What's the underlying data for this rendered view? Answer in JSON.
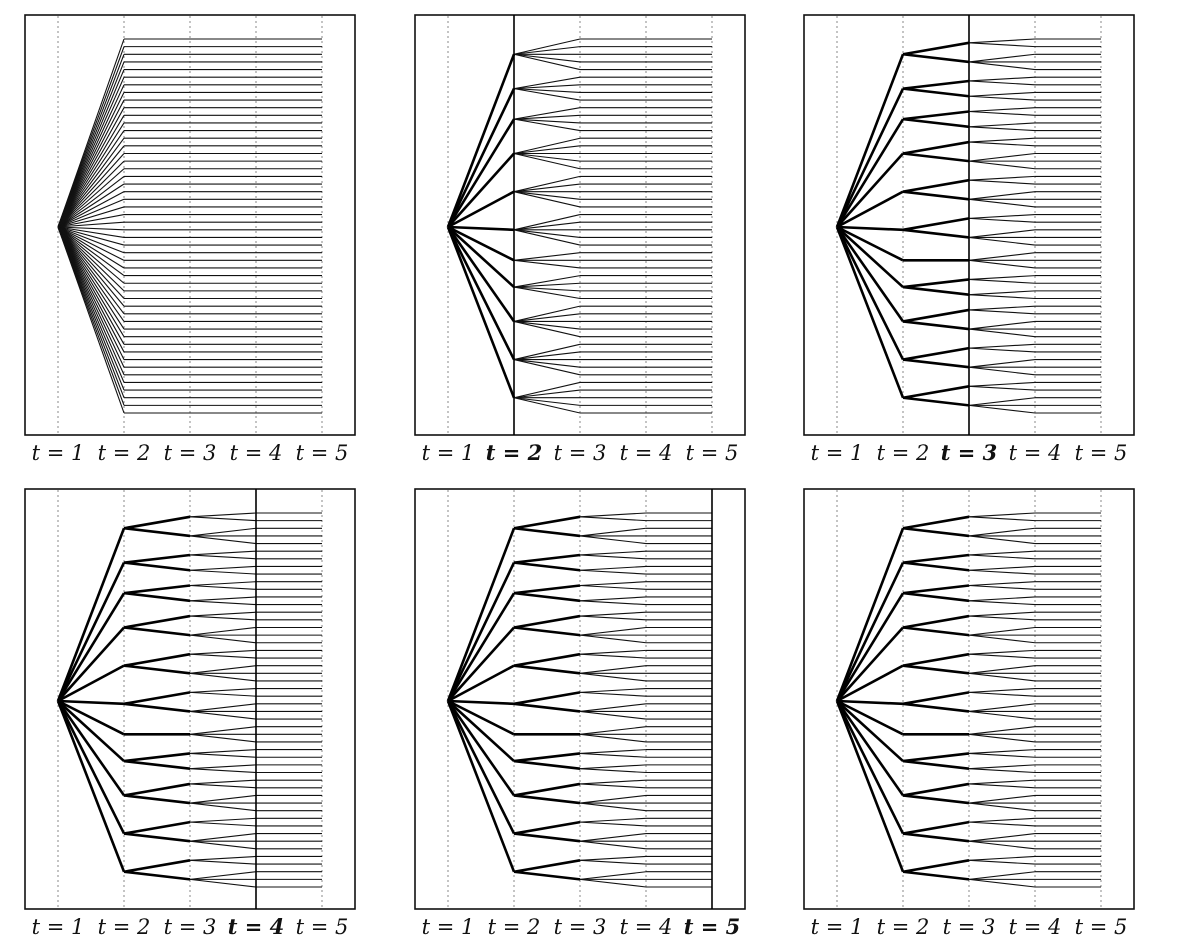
{
  "figure": {
    "x_ticks": [
      "t = 1",
      "t = 2",
      "t = 3",
      "t = 4",
      "t = 5"
    ],
    "tree": {
      "root_fanout": 50,
      "grouping_t2": [
        5,
        4,
        4,
        5,
        5,
        5,
        3,
        4,
        5,
        5,
        5
      ],
      "merge_t3_to_t4": "pairs"
    },
    "panels": [
      {
        "id": "panel-1",
        "highlight_stage": null,
        "bold_label": null
      },
      {
        "id": "panel-2",
        "highlight_stage": 2,
        "bold_label": 2
      },
      {
        "id": "panel-3",
        "highlight_stage": 3,
        "bold_label": 3
      },
      {
        "id": "panel-4",
        "highlight_stage": 4,
        "bold_label": 4
      },
      {
        "id": "panel-5",
        "highlight_stage": 5,
        "bold_label": 5
      },
      {
        "id": "panel-6",
        "highlight_stage": null,
        "bold_label": null
      }
    ],
    "colors": {
      "line": "#000000",
      "grid": "#8a8a8a",
      "background": "#ffffff"
    }
  }
}
